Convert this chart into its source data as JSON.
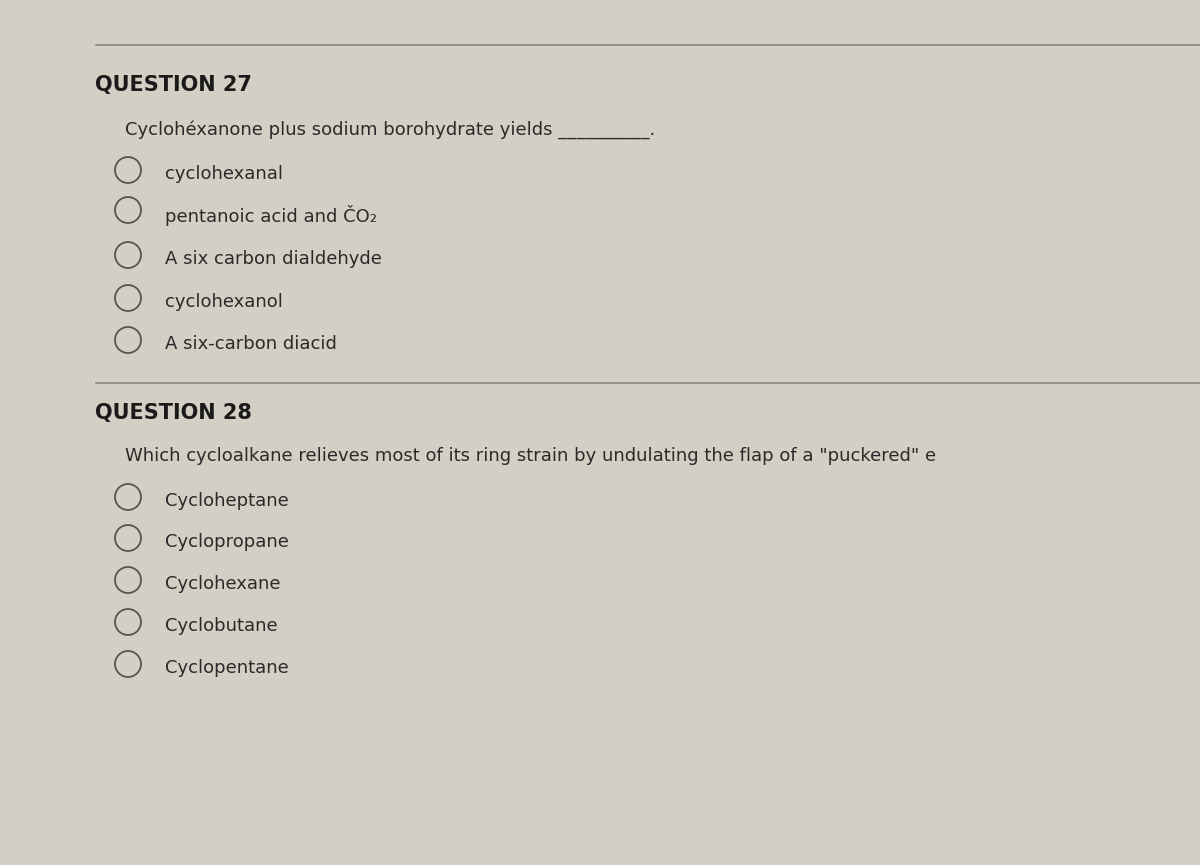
{
  "background_color": "#c8c4b8",
  "panel_color": "#d4cfc4",
  "line_color": "#888880",
  "title_color": "#1a1a1a",
  "text_color": "#2a2a2a",
  "question_font_size": 15,
  "option_font_size": 13,
  "prompt_font_size": 13,
  "q27_title": "QUESTION 27",
  "q27_prompt": "Cyclohéxanone plus sodium borohydrate yields __________.",
  "q27_options": [
    "cyclohexanal",
    "pentanoic acid and ČO₂",
    "A six carbon dialdehyde",
    "cyclohexanol",
    "A six-carbon diacid"
  ],
  "q28_title": "QUESTION 28",
  "q28_prompt": "Which cycloalkane relieves most of its ring strain by undulating the flap of a \"puckered\" e",
  "q28_options": [
    "Cycloheptane",
    "Cyclopropane",
    "Cyclohexane",
    "Cyclobutane",
    "Cyclopentane"
  ]
}
